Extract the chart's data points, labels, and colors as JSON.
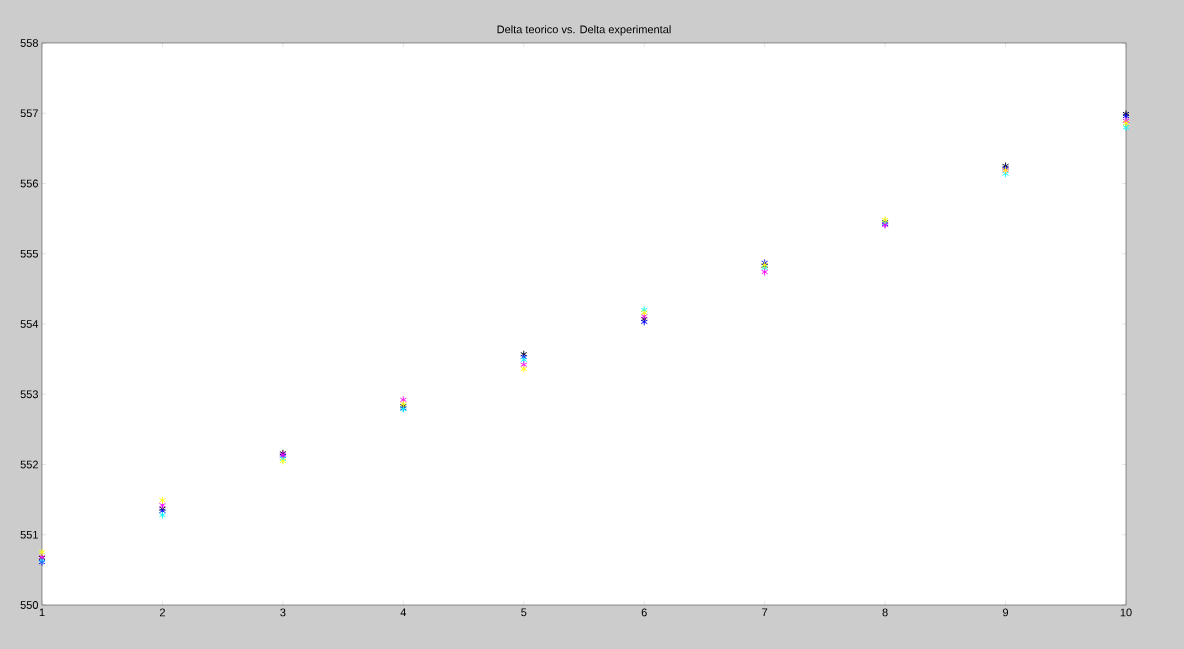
{
  "chart_data": {
    "type": "scatter",
    "title": "Delta teorico vs. Delta experimental",
    "x": [
      1,
      2,
      3,
      4,
      5,
      6,
      7,
      8,
      9,
      10
    ],
    "series": [
      {
        "color": "#000000",
        "values": [
          550.67,
          551.37,
          552.16,
          552.83,
          553.57,
          554.07,
          554.83,
          555.45,
          556.25,
          556.99
        ]
      },
      {
        "color": "#0000ff",
        "values": [
          550.61,
          551.34,
          552.12,
          552.8,
          553.53,
          554.03,
          554.87,
          555.42,
          556.22,
          556.96
        ]
      },
      {
        "color": "#00ffff",
        "values": [
          550.64,
          551.28,
          552.08,
          552.79,
          553.49,
          554.2,
          554.8,
          555.44,
          556.14,
          556.8
        ]
      },
      {
        "color": "#ff00ff",
        "values": [
          550.68,
          551.42,
          552.14,
          552.92,
          553.42,
          554.11,
          554.74,
          555.41,
          556.19,
          556.89
        ]
      },
      {
        "color": "#ffff00",
        "values": [
          550.75,
          551.49,
          552.05,
          552.86,
          553.36,
          554.16,
          554.84,
          555.48,
          556.19,
          556.86
        ]
      }
    ],
    "xlim": [
      1,
      10
    ],
    "ylim": [
      550,
      558
    ],
    "xticks": [
      1,
      2,
      3,
      4,
      5,
      6,
      7,
      8,
      9,
      10
    ],
    "yticks": [
      550,
      551,
      552,
      553,
      554,
      555,
      556,
      557,
      558
    ],
    "marker": "cross",
    "grid": false
  }
}
